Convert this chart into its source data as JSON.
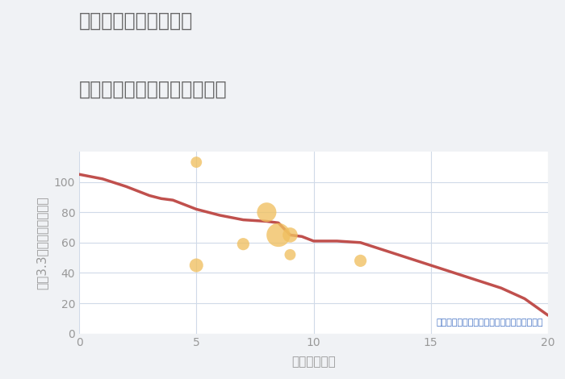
{
  "title_line1": "福岡県太宰府市高雄の",
  "title_line2": "駅距離別中古マンション価格",
  "xlabel": "駅距離（分）",
  "ylabel": "坪（3.3㎡）単価（万円）",
  "background_color": "#f0f2f5",
  "plot_bg_color": "#ffffff",
  "line_color": "#c0504d",
  "line_x": [
    0,
    1,
    2,
    3,
    3.5,
    4,
    5,
    5.5,
    6,
    7,
    8,
    8.5,
    9,
    9.5,
    10,
    11,
    12,
    13,
    14,
    15,
    16,
    17,
    18,
    19,
    20
  ],
  "line_y": [
    105,
    102,
    97,
    91,
    89,
    88,
    82,
    80,
    78,
    75,
    74,
    73,
    65,
    64,
    61,
    61,
    60,
    55,
    50,
    45,
    40,
    35,
    30,
    23,
    12
  ],
  "scatter_x": [
    5,
    5,
    7,
    8,
    8.5,
    9,
    9,
    12
  ],
  "scatter_y": [
    113,
    45,
    59,
    80,
    65,
    65,
    52,
    48
  ],
  "scatter_sizes": [
    100,
    150,
    120,
    300,
    450,
    180,
    100,
    120
  ],
  "scatter_color": "#f0c060",
  "scatter_alpha": 0.78,
  "annotation": "円の大きさは、取引のあった物件面積を示す",
  "annotation_color": "#4472c4",
  "xlim": [
    0,
    20
  ],
  "ylim": [
    0,
    120
  ],
  "xticks": [
    0,
    5,
    10,
    15,
    20
  ],
  "yticks": [
    0,
    20,
    40,
    60,
    80,
    100
  ],
  "grid_color": "#d0dae8",
  "title_color": "#666666",
  "axis_color": "#999999",
  "title_fontsize": 17,
  "label_fontsize": 11,
  "tick_fontsize": 10,
  "annotation_fontsize": 8
}
